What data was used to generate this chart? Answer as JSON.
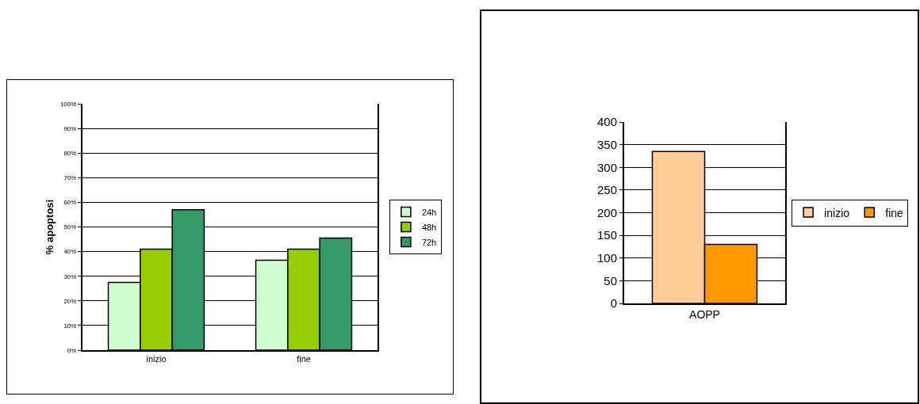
{
  "chart_data": [
    {
      "type": "bar",
      "ylabel": "% apoptosi",
      "categories": [
        "inizio",
        "fine"
      ],
      "series": [
        {
          "name": "24h",
          "color": "#ccffcc",
          "values": [
            27.5,
            36.5
          ]
        },
        {
          "name": "48h",
          "color": "#99cc00",
          "values": [
            41,
            41
          ]
        },
        {
          "name": "72h",
          "color": "#339966",
          "values": [
            57,
            45.5
          ]
        }
      ],
      "ylim": [
        0,
        100
      ],
      "yticks": [
        {
          "value": 0,
          "label": "0%"
        },
        {
          "value": 10,
          "label": "10%"
        },
        {
          "value": 20,
          "label": "20%"
        },
        {
          "value": 30,
          "label": "30%"
        },
        {
          "value": 40,
          "label": "40%"
        },
        {
          "value": 50,
          "label": "50%"
        },
        {
          "value": 60,
          "label": "60%"
        },
        {
          "value": 70,
          "label": "70%"
        },
        {
          "value": 80,
          "label": "80%"
        },
        {
          "value": 90,
          "label": "90%"
        },
        {
          "value": 100,
          "label": "100%"
        }
      ],
      "grid": "y",
      "legend": "right"
    },
    {
      "type": "bar",
      "categories": [
        "AOPP"
      ],
      "series": [
        {
          "name": "inizio",
          "color": "#ffcc99",
          "values": [
            335
          ]
        },
        {
          "name": "fine",
          "color": "#ff9900",
          "values": [
            130
          ]
        }
      ],
      "ylim": [
        0,
        400
      ],
      "yticks": [
        0,
        50,
        100,
        150,
        200,
        250,
        300,
        350,
        400
      ],
      "grid": "y",
      "legend": "right"
    }
  ]
}
